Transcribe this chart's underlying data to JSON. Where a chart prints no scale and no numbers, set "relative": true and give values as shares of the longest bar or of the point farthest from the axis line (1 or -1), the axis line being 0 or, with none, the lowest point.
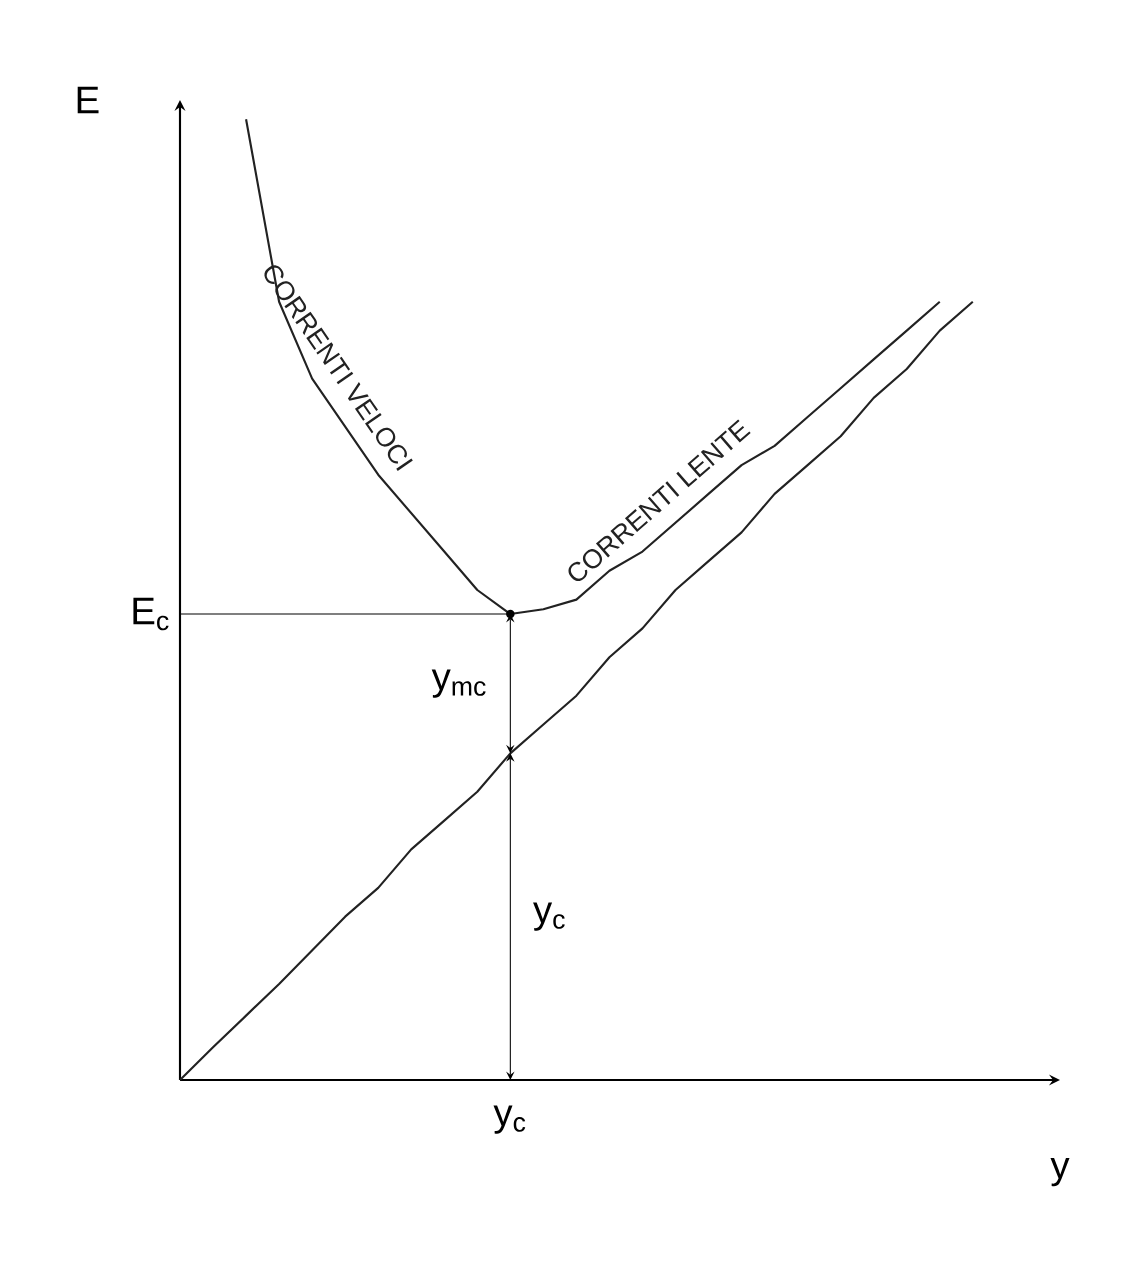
{
  "chart_data": {
    "type": "line",
    "relative": true,
    "xlabel": "y",
    "ylabel": "E",
    "categories": [
      null,
      null,
      null,
      null,
      null,
      null,
      null,
      null,
      null,
      null,
      null,
      null,
      null,
      null,
      null,
      null,
      null,
      null,
      null,
      null,
      null,
      null,
      null,
      null,
      null
    ],
    "series": [
      {
        "color": "#222222",
        "values": [
          null,
          null,
          1,
          0.81,
          0.73,
          0.68,
          0.63,
          0.59,
          0.55,
          0.51,
          0.485,
          0.49,
          0.5,
          0.53,
          0.55,
          0.58,
          0.61,
          0.64,
          0.66,
          0.69,
          0.72,
          0.75,
          0.78,
          0.81,
          null
        ]
      },
      {
        "color": "#222222",
        "values": [
          0,
          0.034,
          0.067,
          0.1,
          0.135,
          0.17,
          0.2,
          0.24,
          0.27,
          0.3,
          0.34,
          0.37,
          0.4,
          0.44,
          0.47,
          0.51,
          0.54,
          0.57,
          0.61,
          0.64,
          0.67,
          0.71,
          0.74,
          0.78,
          0.81
        ]
      }
    ],
    "annotations": [
      "CORRENTI VELOCI",
      "CORRENTI LENTE",
      "E$_{c}$",
      "y$_{mc}$",
      "y$_{c}$",
      "y$_{c}$"
    ]
  }
}
